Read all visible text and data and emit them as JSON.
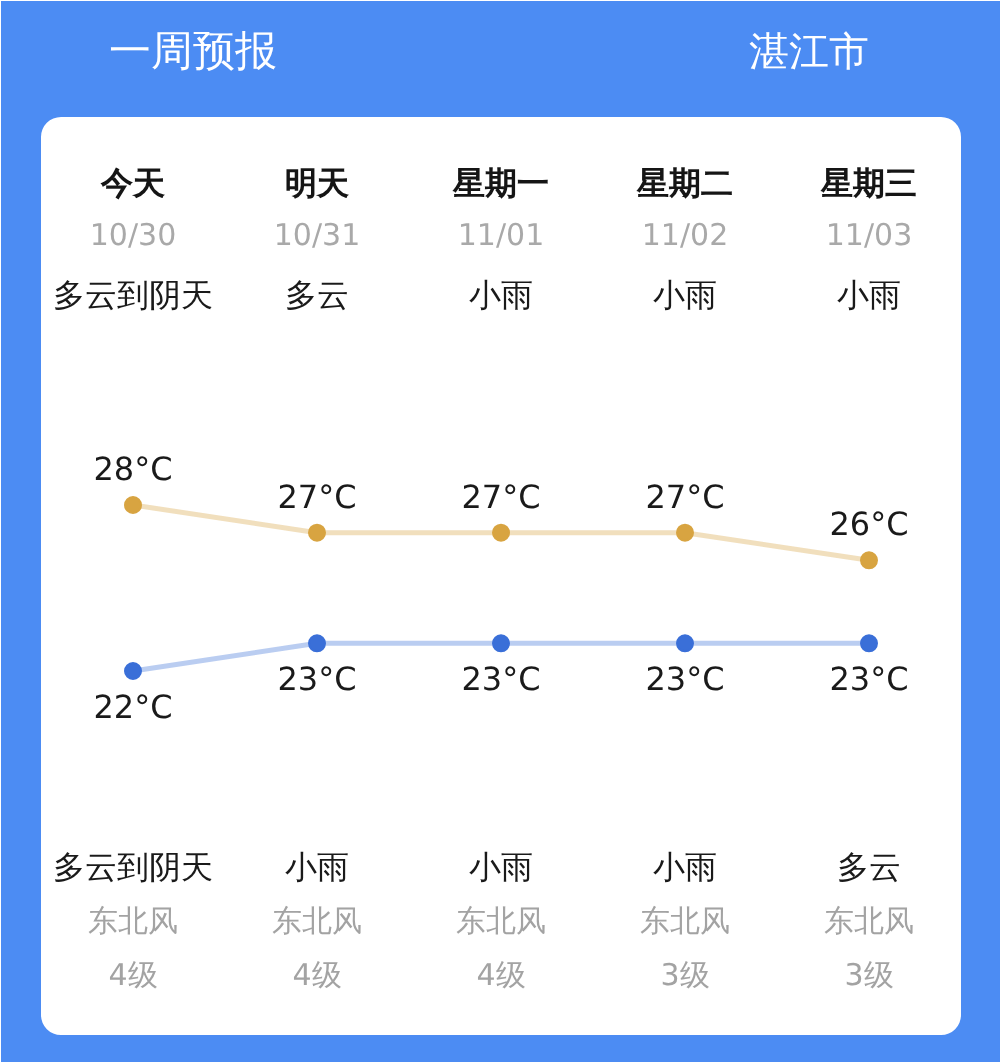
{
  "chart_data": {
    "type": "line",
    "title": "一周预报",
    "subtitle": "湛江市",
    "categories": [
      "今天",
      "明天",
      "星期一",
      "星期二",
      "星期三"
    ],
    "series": [
      {
        "color": "#d8a441",
        "values": [
          28,
          27,
          27,
          27,
          26
        ],
        "value_labels": [
          "28°C",
          "27°C",
          "27°C",
          "27°C",
          "26°C"
        ]
      },
      {
        "color": "#3a6fd8",
        "values": [
          22,
          23,
          23,
          23,
          23
        ],
        "value_labels": [
          "22°C",
          "23°C",
          "23°C",
          "23°C",
          "23°C"
        ]
      }
    ],
    "marker": "circle",
    "tick_labels": "x",
    "annotations": [
      "10/30",
      "10/31",
      "11/01",
      "11/02",
      "11/03",
      "多云到阴天",
      "多云",
      "小雨",
      "小雨",
      "小雨",
      "多云到阴天",
      "小雨",
      "小雨",
      "小雨",
      "多云",
      "东北风",
      "东北风",
      "东北风",
      "东北风",
      "东北风",
      "4级",
      "4级",
      "4级",
      "3级",
      "3级"
    ]
  }
}
